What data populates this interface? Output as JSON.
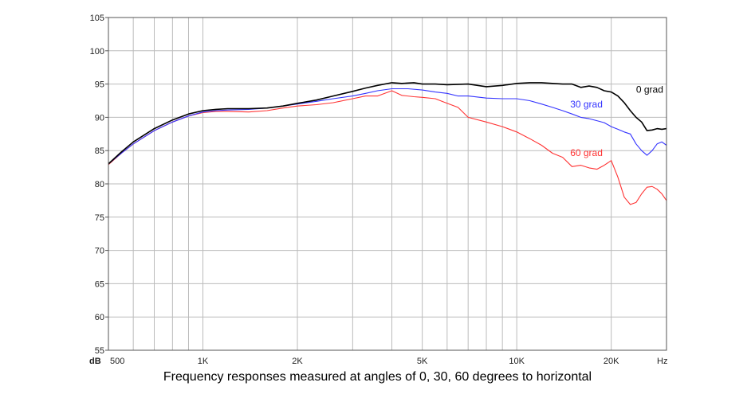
{
  "caption": "Frequency responses measured at angles of 0, 30, 60 degrees to horizontal",
  "chart_data": {
    "type": "line",
    "title": "",
    "xlabel": "",
    "ylabel": "",
    "x_unit": "Hz",
    "y_unit": "dB",
    "xscale": "log",
    "xlim": [
      500,
      30000
    ],
    "ylim": [
      55,
      105
    ],
    "grid": true,
    "y_ticks": [
      55,
      60,
      65,
      70,
      75,
      80,
      85,
      90,
      95,
      100,
      105
    ],
    "x_ticks": [
      {
        "value": 500,
        "label": "500"
      },
      {
        "value": 1000,
        "label": "1K"
      },
      {
        "value": 2000,
        "label": "2K"
      },
      {
        "value": 5000,
        "label": "5K"
      },
      {
        "value": 10000,
        "label": "10K"
      },
      {
        "value": 20000,
        "label": "20K"
      }
    ],
    "x_gridlines": [
      500,
      600,
      700,
      800,
      900,
      1000,
      2000,
      3000,
      4000,
      5000,
      6000,
      7000,
      8000,
      9000,
      10000,
      20000
    ],
    "series": [
      {
        "name": "0 grad",
        "color": "#000000",
        "x": [
          500,
          550,
          600,
          700,
          800,
          900,
          1000,
          1100,
          1200,
          1400,
          1600,
          1800,
          2000,
          2300,
          2600,
          3000,
          3300,
          3600,
          4000,
          4300,
          4700,
          5000,
          5500,
          6000,
          7000,
          8000,
          9000,
          10000,
          11000,
          12000,
          13000,
          14000,
          15000,
          16000,
          17000,
          18000,
          19000,
          20000,
          21000,
          22000,
          23000,
          24000,
          25000,
          26000,
          27000,
          28000,
          29000,
          30000
        ],
        "y": [
          83.0,
          84.8,
          86.3,
          88.3,
          89.6,
          90.5,
          91.0,
          91.2,
          91.3,
          91.3,
          91.4,
          91.7,
          92.1,
          92.6,
          93.2,
          93.9,
          94.4,
          94.8,
          95.2,
          95.1,
          95.2,
          95.0,
          95.0,
          94.9,
          95.0,
          94.6,
          94.8,
          95.1,
          95.2,
          95.2,
          95.1,
          95.0,
          95.0,
          94.5,
          94.7,
          94.5,
          94.0,
          93.8,
          93.2,
          92.2,
          91.0,
          90.0,
          89.3,
          88.0,
          88.1,
          88.3,
          88.2,
          88.3
        ]
      },
      {
        "name": "30 grad",
        "color": "#3333ff",
        "x": [
          500,
          550,
          600,
          700,
          800,
          900,
          1000,
          1100,
          1200,
          1400,
          1600,
          1800,
          2000,
          2300,
          2600,
          3000,
          3300,
          3600,
          4000,
          4500,
          5000,
          5500,
          6000,
          6500,
          7000,
          8000,
          9000,
          10000,
          11000,
          12000,
          13000,
          14000,
          15000,
          16000,
          17000,
          18000,
          19000,
          20000,
          21000,
          22000,
          23000,
          24000,
          25000,
          26000,
          27000,
          28000,
          29000,
          30000
        ],
        "y": [
          83.0,
          84.6,
          86.0,
          88.0,
          89.3,
          90.2,
          90.8,
          91.0,
          91.1,
          91.2,
          91.4,
          91.7,
          92.0,
          92.4,
          92.8,
          93.2,
          93.6,
          94.0,
          94.3,
          94.3,
          94.1,
          93.8,
          93.6,
          93.2,
          93.2,
          92.9,
          92.8,
          92.8,
          92.5,
          92.0,
          91.5,
          91.0,
          90.5,
          90.0,
          89.8,
          89.5,
          89.2,
          88.6,
          88.2,
          87.8,
          87.5,
          86.0,
          85.0,
          84.3,
          85.0,
          86.0,
          86.3,
          85.8
        ]
      },
      {
        "name": "60 grad",
        "color": "#ff3333",
        "x": [
          500,
          550,
          600,
          700,
          800,
          900,
          1000,
          1100,
          1200,
          1400,
          1600,
          1800,
          2000,
          2300,
          2600,
          3000,
          3300,
          3600,
          4000,
          4300,
          4700,
          5000,
          5500,
          6000,
          6500,
          7000,
          8000,
          9000,
          10000,
          11000,
          12000,
          13000,
          14000,
          15000,
          16000,
          17000,
          18000,
          19000,
          20000,
          21000,
          22000,
          23000,
          24000,
          25000,
          26000,
          27000,
          28000,
          29000,
          30000
        ],
        "y": [
          82.9,
          84.6,
          86.0,
          88.0,
          89.3,
          90.2,
          90.7,
          90.9,
          90.9,
          90.8,
          91.0,
          91.4,
          91.7,
          91.9,
          92.2,
          92.8,
          93.2,
          93.2,
          94.0,
          93.3,
          93.1,
          93.0,
          92.8,
          92.1,
          91.5,
          90.0,
          89.3,
          88.6,
          87.8,
          86.8,
          85.8,
          84.6,
          84.0,
          82.6,
          82.8,
          82.4,
          82.2,
          82.8,
          83.5,
          81.0,
          78.0,
          76.9,
          77.2,
          78.5,
          79.5,
          79.6,
          79.2,
          78.5,
          77.5
        ]
      }
    ]
  }
}
